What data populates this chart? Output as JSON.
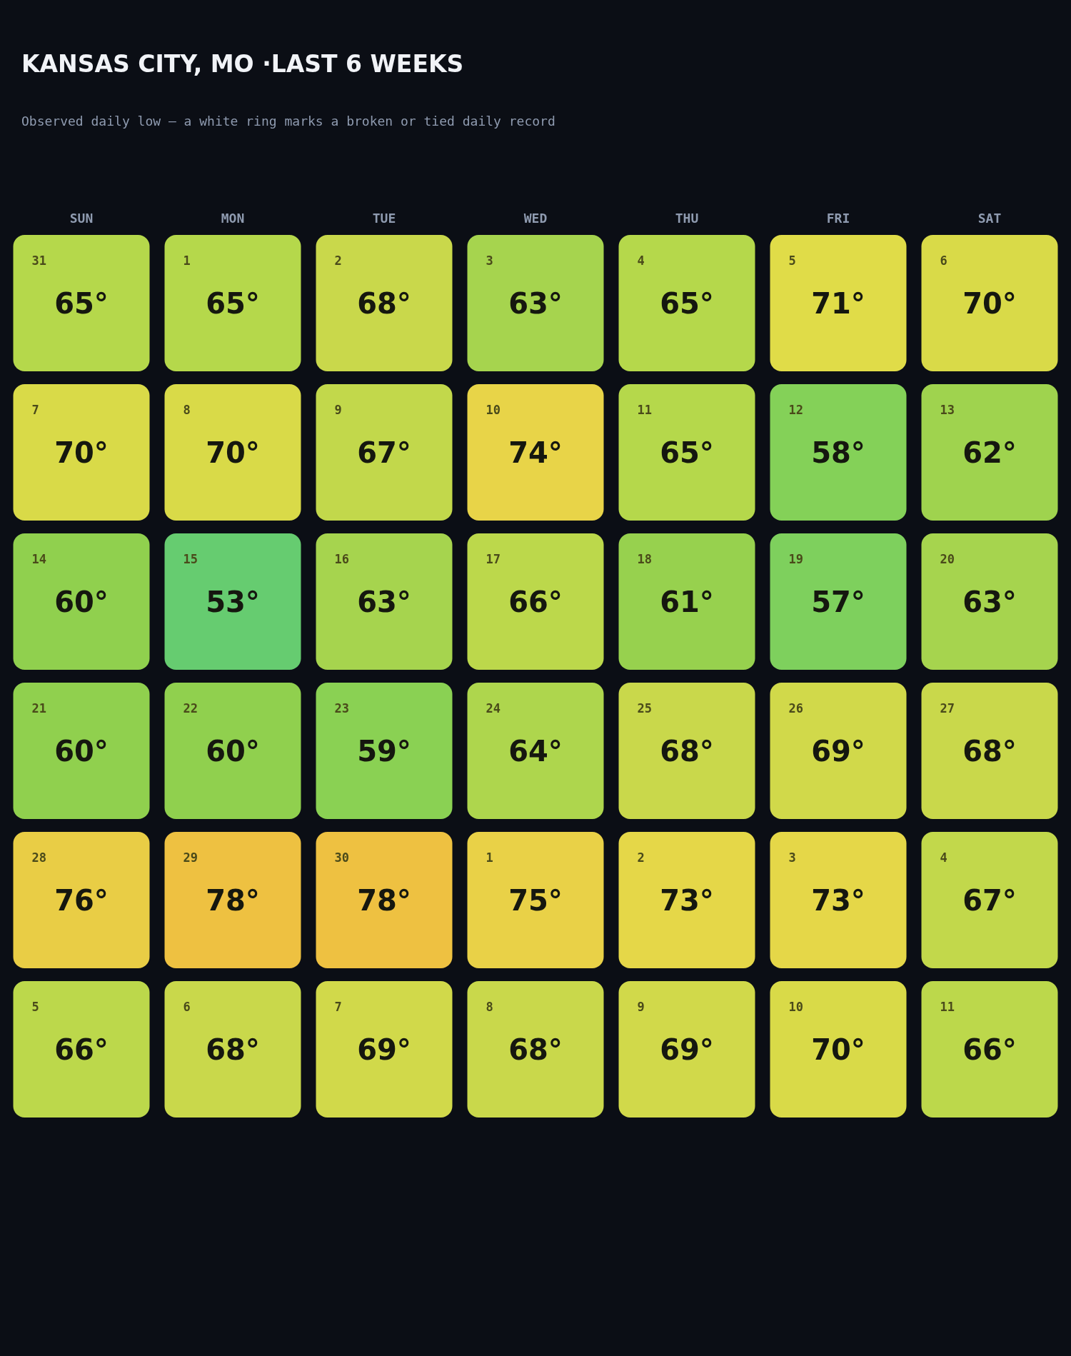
{
  "chart_data": {
    "type": "heatmap",
    "title": "KANSAS CITY, MO ·LAST 6 WEEKS",
    "subtitle": "Observed daily low — a white ring marks a broken or tied daily record",
    "categories": [
      "SUN",
      "MON",
      "TUE",
      "WED",
      "THU",
      "FRI",
      "SAT"
    ],
    "y_categories": [
      null,
      null,
      null,
      null,
      null,
      null
    ],
    "cells": [
      [
        65,
        65,
        68,
        63,
        65,
        71,
        70
      ],
      [
        70,
        70,
        67,
        74,
        65,
        58,
        62
      ],
      [
        60,
        53,
        63,
        66,
        61,
        57,
        63
      ],
      [
        60,
        60,
        59,
        64,
        68,
        69,
        68
      ],
      [
        76,
        78,
        78,
        75,
        73,
        73,
        67
      ],
      [
        66,
        68,
        69,
        68,
        69,
        70,
        66
      ]
    ],
    "cell_labels": [
      [
        "65°",
        "65°",
        "68°",
        "63°",
        "65°",
        "71°",
        "70°"
      ],
      [
        "70°",
        "70°",
        "67°",
        "74°",
        "65°",
        "58°",
        "62°"
      ],
      [
        "60°",
        "53°",
        "63°",
        "66°",
        "61°",
        "57°",
        "63°"
      ],
      [
        "60°",
        "60°",
        "59°",
        "64°",
        "68°",
        "69°",
        "68°"
      ],
      [
        "76°",
        "78°",
        "78°",
        "75°",
        "73°",
        "73°",
        "67°"
      ],
      [
        "66°",
        "68°",
        "69°",
        "68°",
        "69°",
        "70°",
        "66°"
      ]
    ],
    "annotations": [
      "31",
      "1",
      "2",
      "3",
      "4",
      "5",
      "6",
      "7",
      "8",
      "9",
      "10",
      "11",
      "12",
      "13",
      "14",
      "15",
      "16",
      "17",
      "18",
      "19",
      "20",
      "21",
      "22",
      "23",
      "24",
      "25",
      "26",
      "27",
      "28",
      "29",
      "30",
      "1",
      "2",
      "3",
      "4",
      "5",
      "6",
      "7",
      "8",
      "9",
      "10",
      "11"
    ]
  }
}
